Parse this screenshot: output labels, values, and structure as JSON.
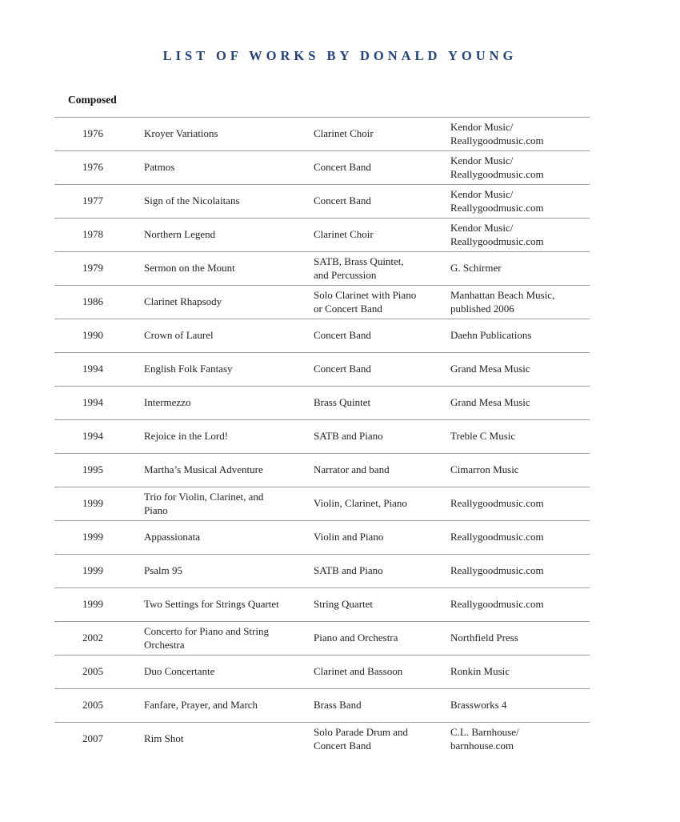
{
  "header": {
    "title": "LIST OF WORKS BY DONALD YOUNG",
    "column_header": "Composed"
  },
  "colors": {
    "title": "#23427c",
    "rule": "#999999",
    "text": "#222222"
  },
  "works": [
    {
      "year": "1976",
      "title": "Kroyer Variations",
      "instrumentation": "Clarinet Choir",
      "publisher": "Kendor Music/\nReallygoodmusic.com"
    },
    {
      "year": "1976",
      "title": "Patmos",
      "instrumentation": "Concert Band",
      "publisher": "Kendor Music/\nReallygoodmusic.com"
    },
    {
      "year": "1977",
      "title": "Sign of the Nicolaitans",
      "instrumentation": "Concert Band",
      "publisher": "Kendor Music/\nReallygoodmusic.com"
    },
    {
      "year": "1978",
      "title": "Northern Legend",
      "instrumentation": "Clarinet Choir",
      "publisher": "Kendor Music/\nReallygoodmusic.com"
    },
    {
      "year": "1979",
      "title": "Sermon on the Mount",
      "instrumentation": "SATB, Brass Quintet,\nand Percussion",
      "publisher": "G. Schirmer"
    },
    {
      "year": "1986",
      "title": "Clarinet Rhapsody",
      "instrumentation": "Solo Clarinet with Piano\nor Concert Band",
      "publisher": "Manhattan Beach Music,\npublished 2006"
    },
    {
      "year": "1990",
      "title": "Crown of Laurel",
      "instrumentation": "Concert Band",
      "publisher": "Daehn Publications"
    },
    {
      "year": "1994",
      "title": "English Folk Fantasy",
      "instrumentation": "Concert Band",
      "publisher": "Grand Mesa Music"
    },
    {
      "year": "1994",
      "title": "Intermezzo",
      "instrumentation": "Brass Quintet",
      "publisher": "Grand Mesa Music"
    },
    {
      "year": "1994",
      "title": "Rejoice in the Lord!",
      "instrumentation": "SATB and Piano",
      "publisher": "Treble C Music"
    },
    {
      "year": "1995",
      "title": "Martha’s Musical Adventure",
      "instrumentation": "Narrator and band",
      "publisher": "Cimarron Music"
    },
    {
      "year": "1999",
      "title": "Trio for Violin, Clarinet, and\nPiano",
      "instrumentation": "Violin, Clarinet, Piano",
      "publisher": "Reallygoodmusic.com"
    },
    {
      "year": "1999",
      "title": "Appassionata",
      "instrumentation": "Violin and Piano",
      "publisher": "Reallygoodmusic.com"
    },
    {
      "year": "1999",
      "title": "Psalm 95",
      "instrumentation": "SATB and Piano",
      "publisher": "Reallygoodmusic.com"
    },
    {
      "year": "1999",
      "title": "Two Settings for Strings Quartet",
      "instrumentation": "String Quartet",
      "publisher": "Reallygoodmusic.com"
    },
    {
      "year": "2002",
      "title": "Concerto for Piano and String\nOrchestra",
      "instrumentation": "Piano and Orchestra",
      "publisher": "Northfield Press"
    },
    {
      "year": "2005",
      "title": "Duo Concertante",
      "instrumentation": "Clarinet and Bassoon",
      "publisher": "Ronkin Music"
    },
    {
      "year": "2005",
      "title": "Fanfare, Prayer, and March",
      "instrumentation": "Brass Band",
      "publisher": "Brassworks 4"
    },
    {
      "year": "2007",
      "title": "Rim Shot",
      "instrumentation": "Solo Parade Drum and\nConcert Band",
      "publisher": "C.L. Barnhouse/\nbarnhouse.com"
    }
  ]
}
